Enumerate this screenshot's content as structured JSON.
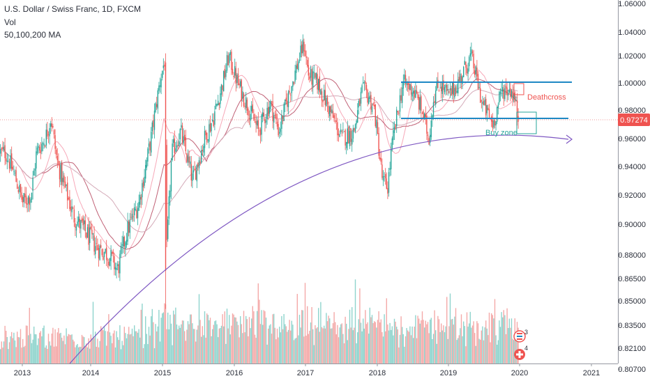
{
  "chart_data": {
    "type": "candlestick",
    "title": "U.S. Dollar / Swiss Franc, 1D, FXCM",
    "indicators": [
      "Vol",
      "50,100,200 MA"
    ],
    "x_ticks": [
      "2013",
      "2014",
      "2015",
      "2016",
      "2017",
      "2018",
      "2019",
      "2020",
      "2021"
    ],
    "y_ticks": [
      "1.06000",
      "1.04000",
      "1.02000",
      "1.00000",
      "0.98000",
      "0.96000",
      "0.94000",
      "0.92000",
      "0.90000",
      "0.88000",
      "0.86500",
      "0.85000",
      "0.83500",
      "0.82100",
      "0.80700"
    ],
    "last_price": "0.97274",
    "price_path": [
      [
        "2012-10-01",
        0.95
      ],
      [
        "2012-11-15",
        0.935
      ],
      [
        "2013-01-01",
        0.915
      ],
      [
        "2013-02-15",
        0.92
      ],
      [
        "2013-03-15",
        0.95
      ],
      [
        "2013-05-01",
        0.96
      ],
      [
        "2013-06-01",
        0.975
      ],
      [
        "2013-07-01",
        0.945
      ],
      [
        "2013-08-01",
        0.93
      ],
      [
        "2013-10-01",
        0.905
      ],
      [
        "2013-12-01",
        0.895
      ],
      [
        "2014-02-01",
        0.885
      ],
      [
        "2014-04-01",
        0.88
      ],
      [
        "2014-05-15",
        0.87
      ],
      [
        "2014-07-01",
        0.895
      ],
      [
        "2014-09-01",
        0.915
      ],
      [
        "2014-11-01",
        0.96
      ],
      [
        "2014-12-15",
        1.0
      ],
      [
        "2015-01-14",
        1.02
      ],
      [
        "2015-01-15",
        0.87
      ],
      [
        "2015-02-15",
        0.95
      ],
      [
        "2015-04-01",
        0.965
      ],
      [
        "2015-06-01",
        0.93
      ],
      [
        "2015-08-01",
        0.96
      ],
      [
        "2015-09-15",
        0.975
      ],
      [
        "2015-11-01",
        1.0
      ],
      [
        "2015-12-01",
        1.02
      ],
      [
        "2016-01-15",
        1.0
      ],
      [
        "2016-03-01",
        0.985
      ],
      [
        "2016-05-01",
        0.965
      ],
      [
        "2016-07-01",
        0.985
      ],
      [
        "2016-08-15",
        0.965
      ],
      [
        "2016-10-01",
        0.99
      ],
      [
        "2016-12-01",
        1.02
      ],
      [
        "2016-12-20",
        1.03
      ],
      [
        "2017-01-15",
        1.005
      ],
      [
        "2017-03-01",
        1.0
      ],
      [
        "2017-05-01",
        0.98
      ],
      [
        "2017-07-01",
        0.96
      ],
      [
        "2017-09-01",
        0.965
      ],
      [
        "2017-10-15",
        0.995
      ],
      [
        "2017-11-15",
        0.99
      ],
      [
        "2017-12-15",
        0.98
      ],
      [
        "2018-01-25",
        0.93
      ],
      [
        "2018-02-20",
        0.925
      ],
      [
        "2018-03-15",
        0.955
      ],
      [
        "2018-04-15",
        0.98
      ],
      [
        "2018-05-10",
        1.0
      ],
      [
        "2018-07-01",
        0.995
      ],
      [
        "2018-08-15",
        0.98
      ],
      [
        "2018-09-20",
        0.96
      ],
      [
        "2018-10-15",
        0.99
      ],
      [
        "2018-11-15",
        1.0
      ],
      [
        "2018-12-31",
        0.99
      ],
      [
        "2019-02-15",
        1.0
      ],
      [
        "2019-04-25",
        1.02
      ],
      [
        "2019-05-20",
        1.005
      ],
      [
        "2019-06-20",
        0.985
      ],
      [
        "2019-08-15",
        0.97
      ],
      [
        "2019-10-01",
        0.995
      ],
      [
        "2019-11-15",
        0.995
      ],
      [
        "2019-12-01",
        0.99
      ],
      [
        "2019-12-20",
        0.975
      ]
    ]
  },
  "labels": {
    "deathcross": "Deathcross",
    "buy_zone": "Buy zone",
    "event_1_count": "3",
    "event_2_count": "4"
  },
  "colors": {
    "up": "#26a69a",
    "down": "#ef5350",
    "ma50": "#f7a8b8",
    "ma100": "#c06075",
    "ma200": "#d4aab8",
    "arc": "#7e57c2",
    "hline": "#1e88c4",
    "last_price_line": "#ef9a9a",
    "price_badge": "#ef5350"
  }
}
